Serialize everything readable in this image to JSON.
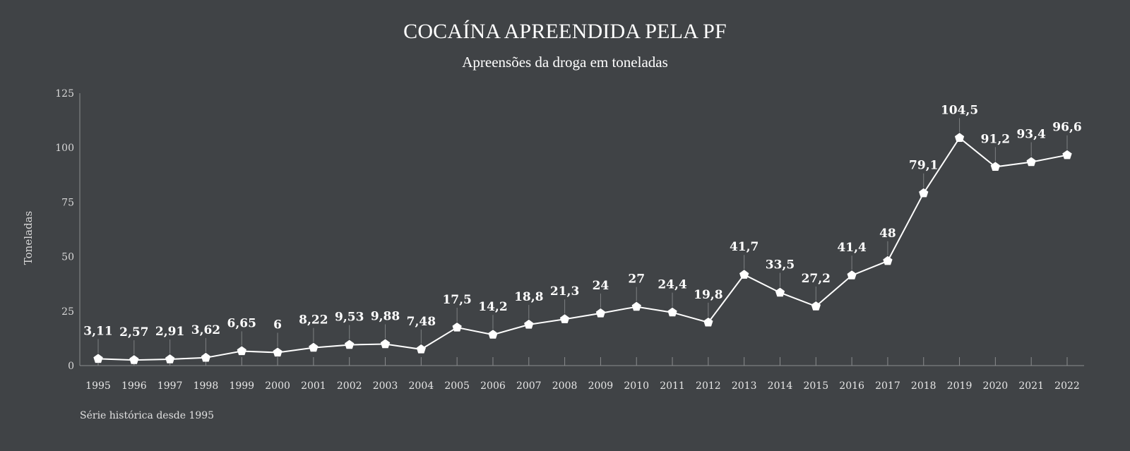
{
  "title": "COCAÍNA APREENDIDA PELA PF",
  "subtitle": "Apreensões da droga em toneladas",
  "note": "Série histórica desde 1995",
  "colors": {
    "background": "#404346",
    "line": "#ffffff",
    "marker": "#ffffff",
    "axis": "#8a8c8e",
    "label": "#ffffff"
  },
  "chart_data": {
    "type": "line",
    "ylabel": "Toneladas",
    "ylim": [
      0,
      125
    ],
    "yticks": [
      0,
      25,
      50,
      75,
      100,
      125
    ],
    "grid": false,
    "categories": [
      "1995",
      "1996",
      "1997",
      "1998",
      "1999",
      "2000",
      "2001",
      "2002",
      "2003",
      "2004",
      "2005",
      "2006",
      "2007",
      "2008",
      "2009",
      "2010",
      "2011",
      "2012",
      "2013",
      "2014",
      "2015",
      "2016",
      "2017",
      "2018",
      "2019",
      "2020",
      "2021",
      "2022"
    ],
    "values": [
      3.11,
      2.57,
      2.91,
      3.62,
      6.65,
      6,
      8.22,
      9.53,
      9.88,
      7.48,
      17.5,
      14.2,
      18.8,
      21.3,
      24,
      27,
      24.4,
      19.8,
      41.7,
      33.5,
      27.2,
      41.4,
      48,
      79.1,
      104.5,
      91.2,
      93.4,
      96.6
    ],
    "data_labels": [
      "3,11",
      "2,57",
      "2,91",
      "3,62",
      "6,65",
      "6",
      "8,22",
      "9,53",
      "9,88",
      "7,48",
      "17,5",
      "14,2",
      "18,8",
      "21,3",
      "24",
      "27",
      "24,4",
      "19,8",
      "41,7",
      "33,5",
      "27,2",
      "41,4",
      "48",
      "79,1",
      "104,5",
      "91,2",
      "93,4",
      "96,6"
    ]
  }
}
